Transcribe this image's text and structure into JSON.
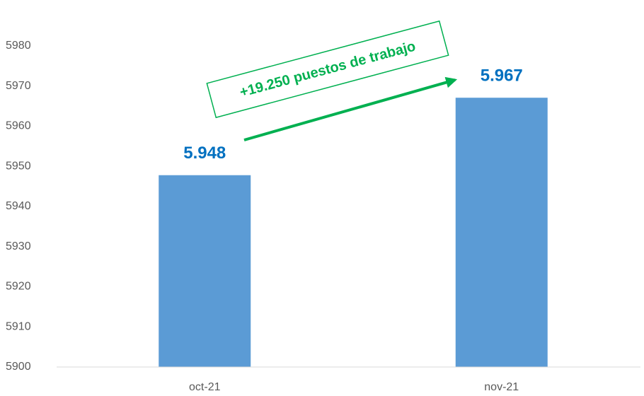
{
  "chart_data": {
    "type": "bar",
    "categories": [
      "oct-21",
      "nov-21"
    ],
    "values": [
      5947.8,
      5967.1
    ],
    "value_labels": [
      "5.948",
      "5.967"
    ],
    "color": "#5b9bd5",
    "ylim": [
      5900,
      5990
    ],
    "yticks": [
      5900,
      5910,
      5920,
      5930,
      5940,
      5950,
      5960,
      5970,
      5980
    ],
    "grid": false,
    "annotation": "+19.250 puestos de trabajo"
  }
}
